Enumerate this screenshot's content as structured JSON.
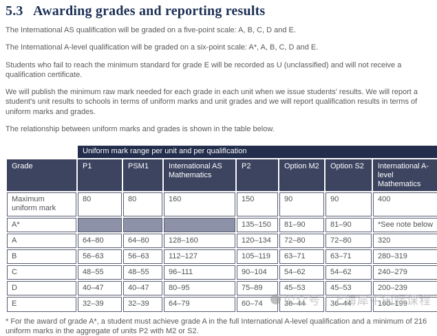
{
  "heading": {
    "number": "5.3",
    "title": "Awarding grades and reporting results"
  },
  "paragraphs": [
    "The International AS qualification will be graded on a five-point scale: A, B, C, D and E.",
    "The International A-level qualification will be graded on a six-point scale: A*, A, B, C, D and E.",
    "Students who fail to reach the minimum standard for grade E will be recorded as U (unclassified) and will not receive a qualification certificate.",
    "We will publish the minimum raw mark needed for each grade in each unit when we issue students' results. We will report a student's unit results to schools in terms of uniform marks and unit grades and we will report qualification results in terms of uniform marks and grades.",
    "The relationship between uniform marks and grades is shown in the table below."
  ],
  "table": {
    "span_header": "Uniform mark range per unit and per qualification",
    "columns": [
      "Grade",
      "P1",
      "PSM1",
      "International AS Mathematics",
      "P2",
      "Option M2",
      "Option S2",
      "International A-level Mathematics"
    ],
    "rows": [
      {
        "cells": [
          "Maximum uniform mark",
          "80",
          "80",
          "160",
          "150",
          "90",
          "90",
          "400"
        ],
        "shaded": []
      },
      {
        "cells": [
          "A*",
          "",
          "",
          "",
          "135–150",
          "81–90",
          "81–90",
          "*See note below"
        ],
        "shaded": [
          1,
          2,
          3
        ]
      },
      {
        "cells": [
          "A",
          "64–80",
          "64–80",
          "128–160",
          "120–134",
          "72–80",
          "72–80",
          "320"
        ],
        "shaded": []
      },
      {
        "cells": [
          "B",
          "56–63",
          "56–63",
          "112–127",
          "105–119",
          "63–71",
          "63–71",
          "280–319"
        ],
        "shaded": []
      },
      {
        "cells": [
          "C",
          "48–55",
          "48–55",
          "96–111",
          "90–104",
          "54–62",
          "54–62",
          "240–279"
        ],
        "shaded": []
      },
      {
        "cells": [
          "D",
          "40–47",
          "40–47",
          "80–95",
          "75–89",
          "45–53",
          "45–53",
          "200–239"
        ],
        "shaded": []
      },
      {
        "cells": [
          "E",
          "32–39",
          "32–39",
          "64–79",
          "60–74",
          "36–44",
          "36–44",
          "160–199"
        ],
        "shaded": []
      }
    ]
  },
  "footnote": "* For the award of grade A*, a student must achieve grade A in the full International A-level qualification and a minimum of 216 uniform marks in the aggregate of units P2 with M2 or S2.",
  "watermark": {
    "icon": "round-logo",
    "text": "公众号 | 上海犀牛国际课程"
  },
  "colors": {
    "title": "#1c3055",
    "body_text": "#57585a",
    "span_header_bg": "#232e4d",
    "column_header_bg": "#3d4460",
    "header_text": "#ffffff",
    "shaded_cell": "#8e92a8",
    "table_border": "#575d72"
  }
}
